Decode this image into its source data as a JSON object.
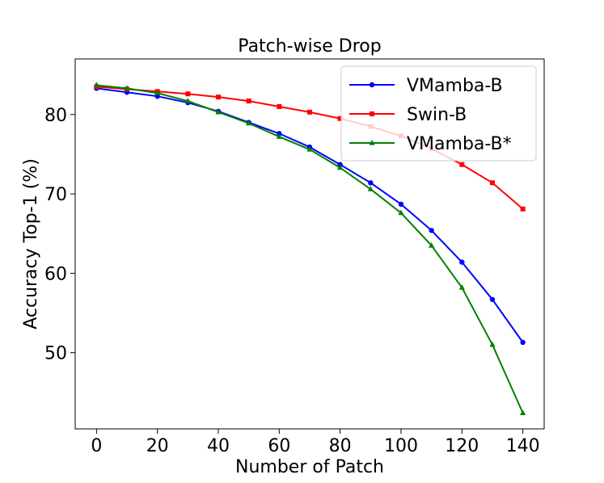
{
  "chart_data": {
    "type": "line",
    "title": "Patch-wise Drop",
    "xlabel": "Number of Patch",
    "ylabel": "Accuracy Top-1 (%)",
    "xlim": [
      -7,
      147
    ],
    "ylim": [
      40.4,
      87.0
    ],
    "xticks": [
      0,
      20,
      40,
      60,
      80,
      100,
      120,
      140
    ],
    "yticks": [
      50,
      60,
      70,
      80
    ],
    "x": [
      0,
      10,
      20,
      30,
      40,
      50,
      60,
      70,
      80,
      90,
      100,
      110,
      120,
      130,
      140
    ],
    "grid": false,
    "legend_position": "top-right",
    "series": [
      {
        "name": "VMamba-B",
        "color": "#0000ff",
        "marker": "circle",
        "values": [
          83.3,
          82.8,
          82.3,
          81.5,
          80.4,
          79.0,
          77.6,
          75.9,
          73.7,
          71.4,
          68.7,
          65.4,
          61.4,
          56.7,
          51.3
        ]
      },
      {
        "name": "Swin-B",
        "color": "#ff0000",
        "marker": "square",
        "values": [
          83.5,
          83.2,
          82.9,
          82.6,
          82.2,
          81.7,
          81.0,
          80.3,
          79.5,
          78.5,
          77.3,
          75.7,
          73.7,
          71.4,
          68.1
        ]
      },
      {
        "name": "VMamba-B*",
        "color": "#008000",
        "marker": "triangle",
        "values": [
          83.7,
          83.3,
          82.7,
          81.7,
          80.3,
          78.9,
          77.2,
          75.6,
          73.3,
          70.6,
          67.6,
          63.5,
          58.2,
          51.0,
          42.4
        ]
      }
    ]
  }
}
